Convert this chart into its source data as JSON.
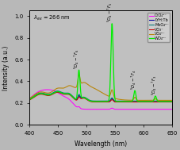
{
  "title": "λ_ex = 266 nm",
  "xlabel": "Wavelength (nm)",
  "ylabel": "Intensity (a.u.)",
  "xlim": [
    400,
    650
  ],
  "legend_labels": [
    "WO₄²⁻",
    "VO₄²⁻",
    "VO₃⁻",
    "MoO₄²⁻",
    "LYH:Tb",
    "CrO₄²⁻"
  ],
  "legend_colors": [
    "#00ee00",
    "#b8860b",
    "#cc0000",
    "#007777",
    "#000099",
    "#ff00ff"
  ],
  "bg_color": "#d8d8d8",
  "plot_bg": "#c8c8c8"
}
